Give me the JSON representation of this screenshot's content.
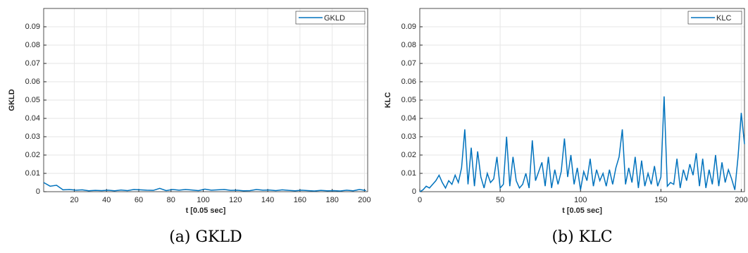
{
  "chart_data": [
    {
      "type": "line",
      "ylabel": "GKLD",
      "xlabel": "t [0.05 sec]",
      "caption": "(a) GKLD",
      "grid": true,
      "legend": "upper right",
      "xlim": [
        1,
        202
      ],
      "xticks": [
        20,
        40,
        60,
        80,
        100,
        120,
        140,
        160,
        180,
        200
      ],
      "ylim": [
        0,
        0.1
      ],
      "yticks": [
        0,
        0.01,
        0.02,
        0.03,
        0.04,
        0.05,
        0.06,
        0.07,
        0.08,
        0.09
      ],
      "x": [
        1,
        5,
        9,
        13,
        17,
        21,
        25,
        29,
        33,
        37,
        41,
        45,
        49,
        53,
        57,
        61,
        65,
        69,
        73,
        77,
        81,
        85,
        89,
        93,
        97,
        101,
        105,
        109,
        113,
        117,
        121,
        125,
        129,
        133,
        137,
        141,
        145,
        149,
        153,
        157,
        161,
        165,
        169,
        173,
        177,
        181,
        185,
        189,
        193,
        197,
        201
      ],
      "series": [
        {
          "name": "GKLD",
          "color": "#0072bd",
          "values": [
            0.005,
            0.003,
            0.0035,
            0.001,
            0.0012,
            0.0008,
            0.001,
            0.0005,
            0.0007,
            0.0006,
            0.0008,
            0.0005,
            0.0009,
            0.0006,
            0.0012,
            0.001,
            0.0008,
            0.0007,
            0.0018,
            0.0006,
            0.0012,
            0.0008,
            0.0012,
            0.0009,
            0.0006,
            0.0014,
            0.0008,
            0.001,
            0.0012,
            0.0007,
            0.0008,
            0.0005,
            0.0006,
            0.0012,
            0.0008,
            0.0009,
            0.0006,
            0.001,
            0.0007,
            0.0005,
            0.0008,
            0.0006,
            0.0004,
            0.0007,
            0.0005,
            0.0006,
            0.0004,
            0.0008,
            0.0005,
            0.0012,
            0.0006
          ]
        }
      ]
    },
    {
      "type": "line",
      "ylabel": "KLC",
      "xlabel": "t [0.05 sec]",
      "caption": "(b) KLC",
      "grid": true,
      "legend": "upper right",
      "xlim": [
        0,
        202
      ],
      "xticks": [
        0,
        50,
        100,
        150,
        200
      ],
      "ylim": [
        0,
        0.1
      ],
      "yticks": [
        0,
        0.01,
        0.02,
        0.03,
        0.04,
        0.05,
        0.06,
        0.07,
        0.08,
        0.09
      ],
      "x": [
        0,
        2,
        4,
        6,
        8,
        10,
        12,
        14,
        16,
        18,
        20,
        22,
        24,
        26,
        28,
        30,
        32,
        34,
        36,
        38,
        40,
        42,
        44,
        46,
        48,
        50,
        52,
        54,
        56,
        58,
        60,
        62,
        64,
        66,
        68,
        70,
        72,
        74,
        76,
        78,
        80,
        82,
        84,
        86,
        88,
        90,
        92,
        94,
        96,
        98,
        100,
        102,
        104,
        106,
        108,
        110,
        112,
        114,
        116,
        118,
        120,
        122,
        124,
        126,
        128,
        130,
        132,
        134,
        136,
        138,
        140,
        142,
        144,
        146,
        148,
        150,
        152,
        154,
        156,
        158,
        160,
        162,
        164,
        166,
        168,
        170,
        172,
        174,
        176,
        178,
        180,
        182,
        184,
        186,
        188,
        190,
        192,
        194,
        196,
        198,
        200,
        202
      ],
      "series": [
        {
          "name": "KLC",
          "color": "#0072bd",
          "values": [
            0,
            0.001,
            0.003,
            0.002,
            0.004,
            0.006,
            0.009,
            0.005,
            0.002,
            0.006,
            0.004,
            0.009,
            0.005,
            0.013,
            0.034,
            0.004,
            0.024,
            0.003,
            0.022,
            0.008,
            0.002,
            0.01,
            0.005,
            0.007,
            0.019,
            0.002,
            0.004,
            0.03,
            0.003,
            0.019,
            0.006,
            0.002,
            0.004,
            0.01,
            0.002,
            0.028,
            0.006,
            0.011,
            0.016,
            0.003,
            0.019,
            0.002,
            0.012,
            0.004,
            0.011,
            0.029,
            0.008,
            0.02,
            0.004,
            0.013,
            0.001,
            0.011,
            0.006,
            0.018,
            0.003,
            0.012,
            0.006,
            0.01,
            0.003,
            0.012,
            0.004,
            0.013,
            0.019,
            0.034,
            0.004,
            0.013,
            0.005,
            0.019,
            0.002,
            0.017,
            0.003,
            0.01,
            0.004,
            0.014,
            0.003,
            0.008,
            0.052,
            0.003,
            0.005,
            0.004,
            0.018,
            0.002,
            0.012,
            0.006,
            0.015,
            0.009,
            0.021,
            0.003,
            0.018,
            0.002,
            0.012,
            0.004,
            0.02,
            0.003,
            0.016,
            0.005,
            0.012,
            0.007,
            0.001,
            0.019,
            0.043,
            0.026
          ]
        }
      ]
    }
  ]
}
